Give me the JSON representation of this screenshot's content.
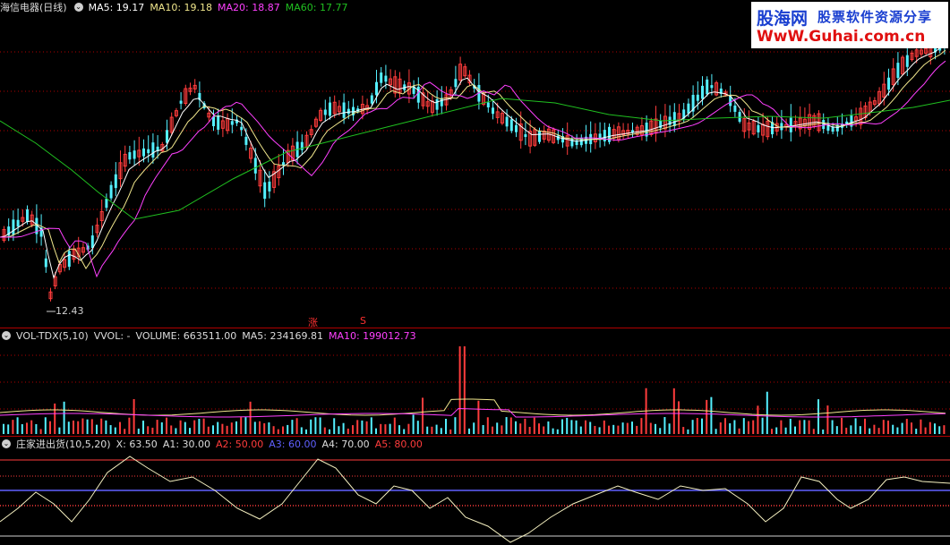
{
  "price_header": {
    "title": "海信电器(日线)",
    "ma5": "MA5: 19.17",
    "ma10": "MA10: 19.18",
    "ma20": "MA20: 18.87",
    "ma60": "MA60: 17.77"
  },
  "price_panel": {
    "low_label": "12.43",
    "signal_rise": "涨",
    "signal_s": "S"
  },
  "volume_header": {
    "title": "VOL-TDX(5,10)",
    "vvol": "VVOL: -",
    "volume": "VOLUME: 663511.00",
    "ma5": "MA5: 234169.81",
    "ma10": "MA10: 199012.73"
  },
  "indicator_header": {
    "title": "庄家进出货(10,5,20)",
    "x": "X: 63.50",
    "a1": "A1: 30.00",
    "a2": "A2: 50.00",
    "a3": "A3: 60.00",
    "a4": "A4: 70.00",
    "a5": "A5: 80.00"
  },
  "logo": {
    "cn": "股海网",
    "tagline": "股票软件资源分享",
    "url": "WwW.Guhai.com.cn"
  },
  "colors": {
    "up": "#ff3c3c",
    "down": "#54f0ff",
    "ma5": "#ffffff",
    "ma10": "#f0e68c",
    "ma20": "#ff40ff",
    "ma60": "#20c020",
    "grid": "#b00000",
    "a3_line": "#6060ff"
  }
}
